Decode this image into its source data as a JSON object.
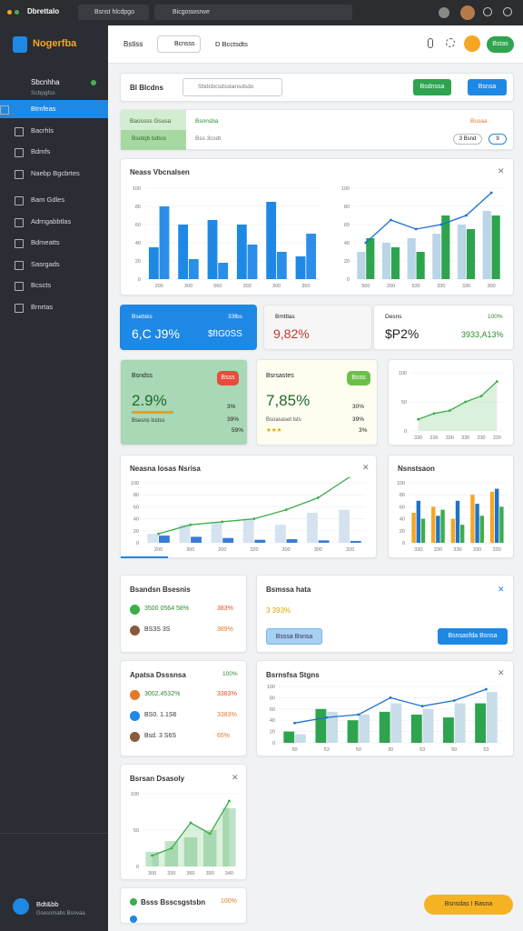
{
  "browser": {
    "title": "Dbrettalo",
    "tabs": [
      "Bsnst hlcdpgo",
      "Bicgoswsrwe"
    ]
  },
  "sidebar": {
    "brand": "Nogerfba",
    "section": "Sbcnhha",
    "section_sub": "Scbpgfss",
    "items": [
      "Btmfeas",
      "Bacrhls",
      "Bdmfs",
      "Naebp Bgcbrtes",
      "Bam Gdles",
      "Adrngabbtlas",
      "Bdmeatts",
      "Sasrgads",
      "Bcscts",
      "Brnrtas"
    ],
    "active": 0,
    "footer_name": "Bdt&bb",
    "footer_sub": "Gsesnmabs Bsnvaa"
  },
  "header": {
    "title": "Bstiss",
    "button": "Bcnsss",
    "link": "D Bcctsdts",
    "action": "Bstas"
  },
  "toolbar": {
    "title": "Bl Blcdns",
    "search": "Sbdcbcsdsstansdsdo",
    "buttons": [
      "Bsdnssa",
      "Bsnsa"
    ]
  },
  "tabs": {
    "items": [
      {
        "label": "Baossss Gsusa",
        "sub": "Bsotqb bdtos"
      },
      {
        "label": "Bsnnsba",
        "sub": "Bss 3csdt"
      }
    ],
    "right": "Bsoaa",
    "pill": "3 Bsnd",
    "badge": "9"
  },
  "overview": {
    "title": "Neass Vbcnalsen"
  },
  "kpis": [
    {
      "label": "Bsetsks",
      "value": "6,C J9%",
      "tag": "33fbs",
      "sub": "$fIG0SS"
    },
    {
      "label": "Bmttlas",
      "value": "9,82%"
    },
    {
      "label": "Desns",
      "value": "$P2%",
      "tag": "100%",
      "sub": "3933,A13%"
    }
  ],
  "stats": [
    {
      "label": "Bsndss",
      "value": "2.9%",
      "badge": "Bsss",
      "note": "Bsesns lsstss",
      "side": [
        "3%",
        "39%",
        "59%"
      ]
    },
    {
      "label": "Bsrsastes",
      "value": "7,85%",
      "badge": "Bsss",
      "note": "Bsoasaset lsts",
      "side": [
        "30%",
        "39%",
        "3%"
      ]
    }
  ],
  "trend": {
    "title": "Neasna Iosas Nsrisa"
  },
  "mix": {
    "title": "Nsnstsaon"
  },
  "lists": [
    {
      "title": "Bsandsn Bsesnis",
      "items": [
        {
          "label": "3500 0564 58%",
          "value": "383%",
          "color": "#3cae49"
        },
        {
          "label": "BS3S 3S",
          "value": "389%",
          "color": "#8a5a3c"
        }
      ]
    },
    {
      "title": "Apatsa Dsssnsa",
      "value": "100%",
      "items": [
        {
          "label": "3002.4532%",
          "value": "3383%",
          "color": "#e07b2a"
        },
        {
          "label": "BS0. 1.1S6",
          "value": "3383%",
          "color": "#1e88e5"
        },
        {
          "label": "Bsd. 3 S6S",
          "value": "65%",
          "color": "#8a5a3c"
        }
      ]
    }
  ],
  "notice": {
    "title": "Bsmssa hata",
    "value": "3 393%",
    "buttons": [
      "Bsssa Bsnsa",
      "Bsnsasfda Bsnsa"
    ]
  },
  "series_card": {
    "title": "Bsrnsfsa Stgns"
  },
  "area_card": {
    "title": "Bsrsan Dsasoly"
  },
  "footer_card": {
    "title": "Bsss Bsscsgstsbn",
    "value": "100%"
  },
  "cta": "Bsnsdas I Basna",
  "charts": [
    {
      "ylim": [
        0,
        100
      ],
      "yticks": [
        0,
        20,
        40,
        60,
        80,
        100
      ],
      "categories": [
        "200",
        "300",
        "560",
        "303",
        "300",
        "350"
      ],
      "series": [
        {
          "kind": "bar",
          "color": "#1e88e5",
          "values": [
            35,
            60,
            65,
            60,
            85,
            25
          ]
        },
        {
          "kind": "bar",
          "color": "#2b8ee8",
          "values": [
            80,
            22,
            18,
            38,
            30,
            50
          ]
        }
      ]
    },
    {
      "ylim": [
        0,
        100
      ],
      "yticks": [
        0,
        20,
        40,
        60,
        80,
        100
      ],
      "categories": [
        "500",
        "200",
        "530",
        "330",
        "330",
        "300"
      ],
      "series": [
        {
          "kind": "bar",
          "color": "#b9d6e8",
          "values": [
            30,
            40,
            45,
            50,
            60,
            75
          ]
        },
        {
          "kind": "bar",
          "color": "#2ea44f",
          "values": [
            45,
            35,
            30,
            70,
            55,
            70
          ]
        },
        {
          "kind": "line",
          "color": "#1e6fd0",
          "values": [
            40,
            65,
            55,
            60,
            70,
            95
          ]
        }
      ]
    },
    {
      "ylim": [
        0,
        100
      ],
      "yticks": [
        0,
        50,
        100
      ],
      "categories": [
        "330",
        "330",
        "330",
        "330",
        "330",
        "330"
      ],
      "area": true,
      "series": [
        {
          "kind": "line",
          "color": "#3cae49",
          "values": [
            20,
            30,
            35,
            50,
            60,
            85
          ]
        }
      ]
    },
    {
      "ylim": [
        0,
        100
      ],
      "yticks": [
        0,
        20,
        40,
        60,
        80,
        100
      ],
      "categories": [
        "200",
        "300",
        "200",
        "320",
        "300",
        "300",
        "320"
      ],
      "series": [
        {
          "kind": "bar",
          "color": "#d4e3ef",
          "values": [
            15,
            30,
            35,
            40,
            30,
            50,
            55
          ]
        },
        {
          "kind": "bar",
          "color": "#3a7bd5",
          "values": [
            12,
            10,
            8,
            5,
            6,
            4,
            3
          ]
        },
        {
          "kind": "line",
          "color": "#3cae49",
          "values": [
            15,
            30,
            35,
            40,
            55,
            75,
            110
          ]
        }
      ]
    },
    {
      "ylim": [
        0,
        100
      ],
      "yticks": [
        0,
        20,
        40,
        60,
        80,
        100
      ],
      "categories": [
        "330",
        "330",
        "330",
        "330",
        "330"
      ],
      "series": [
        {
          "kind": "bar",
          "color": "#f5a623",
          "values": [
            50,
            60,
            40,
            80,
            85
          ]
        },
        {
          "kind": "bar",
          "color": "#1e73c8",
          "values": [
            70,
            45,
            70,
            65,
            90
          ]
        },
        {
          "kind": "bar",
          "color": "#3cae49",
          "values": [
            40,
            55,
            30,
            45,
            60
          ]
        }
      ]
    },
    {
      "ylim": [
        0,
        100
      ],
      "yticks": [
        0,
        20,
        40,
        60,
        80,
        100
      ],
      "categories": [
        "50",
        "53",
        "50",
        "30",
        "53",
        "50",
        "53"
      ],
      "series": [
        {
          "kind": "bar",
          "color": "#2ea44f",
          "values": [
            20,
            60,
            40,
            55,
            50,
            45,
            70
          ]
        },
        {
          "kind": "bar",
          "color": "#c9dcea",
          "values": [
            15,
            55,
            50,
            70,
            60,
            70,
            90
          ]
        },
        {
          "kind": "line",
          "color": "#1e6fd0",
          "values": [
            35,
            45,
            50,
            80,
            65,
            75,
            95
          ]
        }
      ]
    },
    {
      "ylim": [
        0,
        100
      ],
      "yticks": [
        0,
        50,
        100
      ],
      "categories": [
        "300",
        "330",
        "360",
        "390",
        "340"
      ],
      "area": true,
      "series": [
        {
          "kind": "bar",
          "color": "#bfe3c8",
          "values": [
            20,
            35,
            40,
            50,
            80
          ]
        },
        {
          "kind": "line",
          "color": "#3cae49",
          "values": [
            15,
            25,
            60,
            45,
            90
          ]
        }
      ]
    }
  ]
}
